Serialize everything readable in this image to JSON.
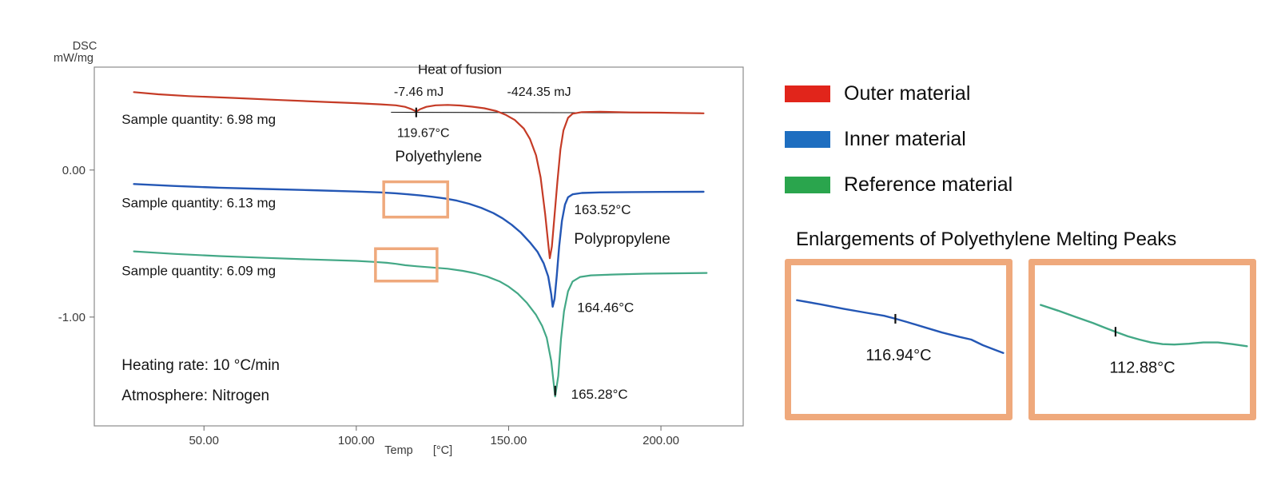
{
  "axes": {
    "y_title_line1": "DSC",
    "y_title_line2": "mW/mg",
    "x_title": "Temp",
    "x_unit": "[°C]"
  },
  "chart_data": [
    {
      "type": "line",
      "title": "",
      "xlabel": "Temp [°C]",
      "ylabel": "DSC mW/mg",
      "xlim": [
        14,
        227
      ],
      "ylim": [
        -1.74,
        0.7
      ],
      "x_ticks": [
        {
          "v": 50,
          "label": "50.00"
        },
        {
          "v": 100,
          "label": "100.00"
        },
        {
          "v": 150,
          "label": "150.00"
        },
        {
          "v": 200,
          "label": "200.00"
        }
      ],
      "y_ticks": [
        {
          "v": 0,
          "label": "0.00"
        },
        {
          "v": -1,
          "label": "-1.00"
        }
      ],
      "baseline": {
        "color": "#1a1a1a",
        "points": [
          [
            111.5,
            0.393
          ],
          [
            213,
            0.388
          ]
        ]
      },
      "series": [
        {
          "name": "Outer material",
          "color": "#c53b26",
          "width": 2.2,
          "points": [
            [
              27,
              0.53
            ],
            [
              35,
              0.515
            ],
            [
              45,
              0.503
            ],
            [
              60,
              0.49
            ],
            [
              75,
              0.476
            ],
            [
              90,
              0.463
            ],
            [
              100,
              0.455
            ],
            [
              108,
              0.447
            ],
            [
              113,
              0.44
            ],
            [
              116,
              0.43
            ],
            [
              118,
              0.415
            ],
            [
              119.7,
              0.398
            ],
            [
              121,
              0.414
            ],
            [
              123,
              0.43
            ],
            [
              126,
              0.44
            ],
            [
              130,
              0.443
            ],
            [
              134,
              0.439
            ],
            [
              138,
              0.431
            ],
            [
              142,
              0.42
            ],
            [
              146,
              0.401
            ],
            [
              149,
              0.376
            ],
            [
              152,
              0.341
            ],
            [
              155,
              0.282
            ],
            [
              157,
              0.212
            ],
            [
              159,
              0.1
            ],
            [
              160.5,
              -0.05
            ],
            [
              162,
              -0.3
            ],
            [
              163,
              -0.5
            ],
            [
              163.52,
              -0.6
            ],
            [
              164.2,
              -0.52
            ],
            [
              165,
              -0.33
            ],
            [
              166,
              -0.08
            ],
            [
              167,
              0.14
            ],
            [
              168,
              0.27
            ],
            [
              169.5,
              0.355
            ],
            [
              171,
              0.383
            ],
            [
              174,
              0.394
            ],
            [
              180,
              0.396
            ],
            [
              190,
              0.392
            ],
            [
              200,
              0.39
            ],
            [
              214,
              0.386
            ]
          ]
        },
        {
          "name": "Inner material",
          "color": "#2457b5",
          "width": 2.4,
          "points": [
            [
              27,
              -0.095
            ],
            [
              40,
              -0.108
            ],
            [
              55,
              -0.12
            ],
            [
              70,
              -0.129
            ],
            [
              85,
              -0.137
            ],
            [
              100,
              -0.146
            ],
            [
              108,
              -0.152
            ],
            [
              113,
              -0.158
            ],
            [
              117,
              -0.165
            ],
            [
              121,
              -0.173
            ],
            [
              125,
              -0.182
            ],
            [
              129,
              -0.193
            ],
            [
              133,
              -0.208
            ],
            [
              137,
              -0.229
            ],
            [
              141,
              -0.257
            ],
            [
              145,
              -0.293
            ],
            [
              148,
              -0.328
            ],
            [
              151,
              -0.372
            ],
            [
              154,
              -0.425
            ],
            [
              157,
              -0.492
            ],
            [
              159.5,
              -0.557
            ],
            [
              161.5,
              -0.634
            ],
            [
              163,
              -0.724
            ],
            [
              164,
              -0.845
            ],
            [
              164.46,
              -0.93
            ],
            [
              165.1,
              -0.875
            ],
            [
              165.8,
              -0.72
            ],
            [
              166.6,
              -0.52
            ],
            [
              167.5,
              -0.345
            ],
            [
              168.5,
              -0.235
            ],
            [
              169.5,
              -0.185
            ],
            [
              171,
              -0.165
            ],
            [
              174,
              -0.156
            ],
            [
              180,
              -0.152
            ],
            [
              190,
              -0.15
            ],
            [
              200,
              -0.149
            ],
            [
              214,
              -0.148
            ]
          ]
        },
        {
          "name": "Reference material",
          "color": "#43a886",
          "width": 2.2,
          "points": [
            [
              27,
              -0.553
            ],
            [
              40,
              -0.57
            ],
            [
              55,
              -0.585
            ],
            [
              70,
              -0.597
            ],
            [
              85,
              -0.608
            ],
            [
              100,
              -0.618
            ],
            [
              106,
              -0.625
            ],
            [
              110,
              -0.631
            ],
            [
              113,
              -0.638
            ],
            [
              116,
              -0.647
            ],
            [
              120,
              -0.655
            ],
            [
              125,
              -0.663
            ],
            [
              130,
              -0.671
            ],
            [
              135,
              -0.686
            ],
            [
              139,
              -0.702
            ],
            [
              143,
              -0.725
            ],
            [
              147,
              -0.757
            ],
            [
              150,
              -0.793
            ],
            [
              153,
              -0.84
            ],
            [
              156,
              -0.903
            ],
            [
              159,
              -0.985
            ],
            [
              161,
              -1.06
            ],
            [
              162.5,
              -1.14
            ],
            [
              164,
              -1.3
            ],
            [
              165.28,
              -1.54
            ],
            [
              166.3,
              -1.4
            ],
            [
              167.2,
              -1.15
            ],
            [
              168.2,
              -0.96
            ],
            [
              169.5,
              -0.825
            ],
            [
              171,
              -0.758
            ],
            [
              173.5,
              -0.727
            ],
            [
              177,
              -0.716
            ],
            [
              185,
              -0.71
            ],
            [
              195,
              -0.705
            ],
            [
              215,
              -0.7
            ]
          ]
        }
      ],
      "peak_markers": [
        {
          "x": 119.67,
          "y": 0.392
        },
        {
          "x": 165.28,
          "y": -1.5
        }
      ],
      "highlight_boxes": [
        {
          "x1": 109,
          "y1": -0.08,
          "x2": 130,
          "y2": -0.32,
          "color": "#efa97c"
        },
        {
          "x1": 106.3,
          "y1": -0.535,
          "x2": 126.5,
          "y2": -0.755,
          "color": "#efa97c"
        }
      ],
      "annotations": [
        {
          "text": "Heat of fusion",
          "x": 134,
          "y": 0.655,
          "anchor": "middle",
          "fs": 17
        },
        {
          "text": "-7.46 mJ",
          "x": 120.5,
          "y": 0.505,
          "anchor": "middle",
          "fs": 16
        },
        {
          "text": "-424.35 mJ",
          "x": 160,
          "y": 0.505,
          "anchor": "middle",
          "fs": 16
        },
        {
          "text": "119.67°C",
          "x": 122,
          "y": 0.225,
          "anchor": "middle",
          "fs": 16
        },
        {
          "text": "Polyethylene",
          "x": 127,
          "y": 0.06,
          "anchor": "middle",
          "fs": 19
        },
        {
          "text": "Sample quantity: 6.98 mg",
          "x": 23,
          "y": 0.315,
          "anchor": "start",
          "fs": 17
        },
        {
          "text": "Sample quantity: 6.13 mg",
          "x": 23,
          "y": -0.255,
          "anchor": "start",
          "fs": 17
        },
        {
          "text": "Sample quantity: 6.09 mg",
          "x": 23,
          "y": -0.715,
          "anchor": "start",
          "fs": 17
        },
        {
          "text": "163.52°C",
          "x": 171.5,
          "y": -0.3,
          "anchor": "start",
          "fs": 17
        },
        {
          "text": "Polypropylene",
          "x": 171.5,
          "y": -0.5,
          "anchor": "start",
          "fs": 19
        },
        {
          "text": "164.46°C",
          "x": 172.5,
          "y": -0.965,
          "anchor": "start",
          "fs": 17
        },
        {
          "text": "165.28°C",
          "x": 170.5,
          "y": -1.555,
          "anchor": "start",
          "fs": 17
        },
        {
          "text": "Heating rate: 10 °C/min",
          "x": 23,
          "y": -1.36,
          "anchor": "start",
          "fs": 19
        },
        {
          "text": "Atmosphere: Nitrogen",
          "x": 23,
          "y": -1.565,
          "anchor": "start",
          "fs": 19
        }
      ]
    },
    {
      "type": "line",
      "title": "Inner material polyethylene melting peak (enlarged)",
      "xlim": [
        99,
        136
      ],
      "ylim": [
        -0.3,
        -0.1
      ],
      "series": [
        {
          "name": "Inner material enlarged",
          "color": "#2457b5",
          "width": 2.4,
          "points": [
            [
              100,
              -0.147
            ],
            [
              104,
              -0.1525
            ],
            [
              108,
              -0.1585
            ],
            [
              112,
              -0.164
            ],
            [
              115,
              -0.168
            ],
            [
              117,
              -0.172
            ],
            [
              119,
              -0.1765
            ],
            [
              122,
              -0.1835
            ],
            [
              125,
              -0.1905
            ],
            [
              128,
              -0.1965
            ],
            [
              130,
              -0.2
            ],
            [
              132,
              -0.2075
            ],
            [
              134,
              -0.2135
            ],
            [
              135.5,
              -0.218
            ]
          ]
        }
      ],
      "peak_markers": [
        {
          "x": 116.94,
          "y": -0.172
        }
      ],
      "annotations": [
        {
          "text": "116.94°C",
          "x": 117.5,
          "y": -0.228,
          "anchor": "middle",
          "fs": 20
        }
      ]
    },
    {
      "type": "line",
      "title": "Reference material polyethylene melting peak (enlarged)",
      "xlim": [
        99,
        136
      ],
      "ylim": [
        -0.75,
        -0.57
      ],
      "series": [
        {
          "name": "Reference material enlarged",
          "color": "#43a886",
          "width": 2.4,
          "points": [
            [
              100,
              -0.618
            ],
            [
              103,
              -0.625
            ],
            [
              106,
              -0.6325
            ],
            [
              109,
              -0.64
            ],
            [
              111,
              -0.6455
            ],
            [
              112.88,
              -0.6505
            ],
            [
              115,
              -0.656
            ],
            [
              117,
              -0.66
            ],
            [
              119,
              -0.6635
            ],
            [
              121,
              -0.6655
            ],
            [
              123,
              -0.666
            ],
            [
              125.5,
              -0.665
            ],
            [
              128,
              -0.6635
            ],
            [
              130.5,
              -0.6635
            ],
            [
              133,
              -0.6655
            ],
            [
              135.5,
              -0.668
            ]
          ]
        }
      ],
      "peak_markers": [
        {
          "x": 112.88,
          "y": -0.6505
        }
      ],
      "annotations": [
        {
          "text": "112.88°C",
          "x": 117.5,
          "y": -0.7,
          "anchor": "middle",
          "fs": 20
        }
      ]
    }
  ],
  "legend": {
    "items": [
      {
        "label": "Outer material",
        "color": "#e1251b"
      },
      {
        "label": "Inner material",
        "color": "#1e6ec0"
      },
      {
        "label": "Reference material",
        "color": "#2aa54d"
      }
    ]
  },
  "enlargements": {
    "title": "Enlargements of Polyethylene Melting Peaks",
    "frame_color": "#efa97c"
  }
}
